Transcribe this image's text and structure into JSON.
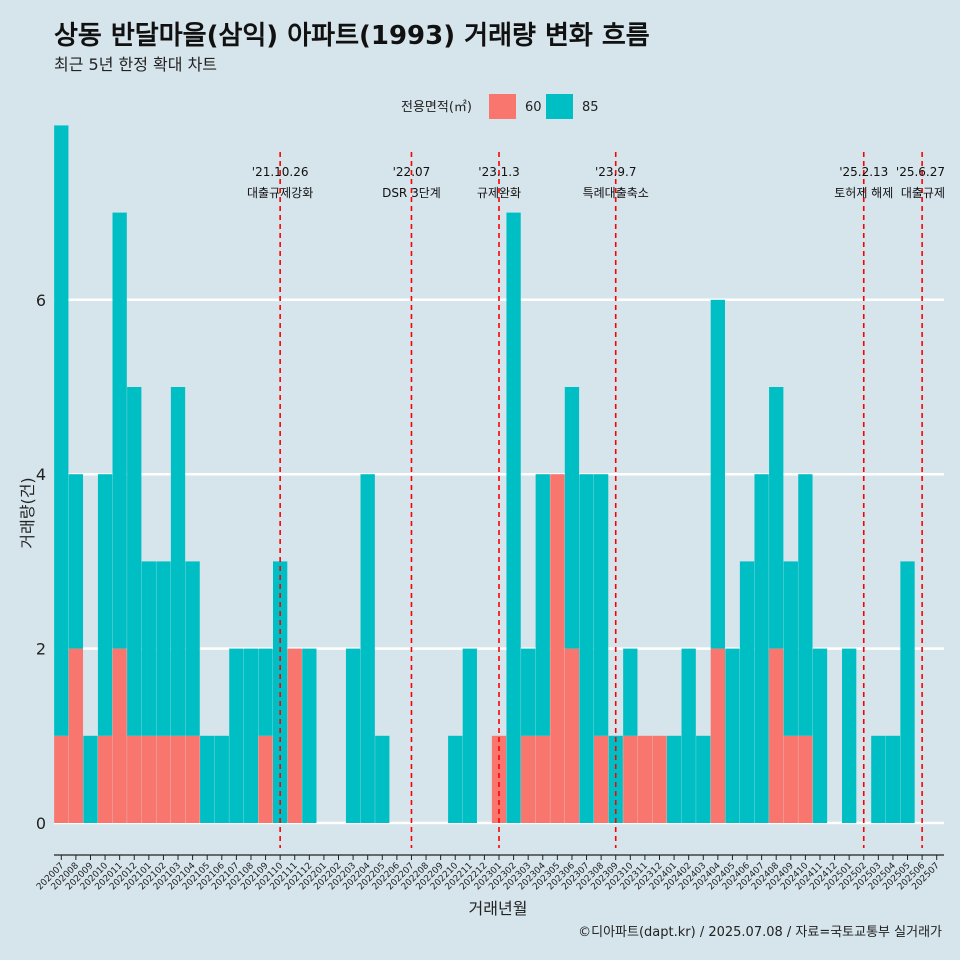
{
  "chart_data": {
    "type": "bar",
    "title": "상동 반달마을(삼익) 아파트(1993) 거래량 변화 흐름",
    "subtitle": "최근 5년 한정 확대 차트",
    "xlabel": "거래년월",
    "ylabel": "거래량(건)",
    "ylim": [
      -0.3,
      7.3
    ],
    "yticks": [
      0,
      2,
      4,
      6
    ],
    "grid": "horizontal",
    "legend": {
      "title": "전용면적(㎡)",
      "position": "top",
      "items": [
        {
          "name": "60",
          "color": "#f8766d"
        },
        {
          "name": "85",
          "color": "#00bfc4"
        }
      ]
    },
    "categories": [
      "202007",
      "202008",
      "202009",
      "202010",
      "202011",
      "202012",
      "202101",
      "202102",
      "202103",
      "202104",
      "202105",
      "202106",
      "202107",
      "202108",
      "202109",
      "202110",
      "202111",
      "202112",
      "202201",
      "202202",
      "202203",
      "202204",
      "202205",
      "202206",
      "202207",
      "202208",
      "202209",
      "202210",
      "202211",
      "202212",
      "202301",
      "202302",
      "202303",
      "202304",
      "202305",
      "202306",
      "202307",
      "202308",
      "202309",
      "202310",
      "202311",
      "202312",
      "202401",
      "202402",
      "202403",
      "202404",
      "202405",
      "202406",
      "202407",
      "202408",
      "202409",
      "202410",
      "202411",
      "202412",
      "202501",
      "202502",
      "202503",
      "202504",
      "202505",
      "202506",
      "202507"
    ],
    "series": [
      {
        "name": "60",
        "color": "#f8766d",
        "values": [
          1,
          2,
          0,
          1,
          2,
          1,
          1,
          1,
          1,
          1,
          0,
          0,
          0,
          0,
          1,
          0,
          2,
          0,
          0,
          0,
          0,
          0,
          0,
          0,
          0,
          0,
          0,
          0,
          0,
          0,
          1,
          0,
          1,
          1,
          4,
          2,
          0,
          1,
          0,
          1,
          1,
          1,
          0,
          0,
          0,
          2,
          0,
          0,
          0,
          2,
          1,
          1,
          0,
          0,
          0,
          0,
          0,
          0,
          0,
          0,
          0
        ]
      },
      {
        "name": "85",
        "color": "#00bfc4",
        "values": [
          7,
          2,
          1,
          3,
          5,
          4,
          2,
          2,
          4,
          2,
          1,
          1,
          2,
          2,
          1,
          3,
          0,
          2,
          0,
          0,
          2,
          4,
          1,
          0,
          0,
          0,
          0,
          1,
          2,
          0,
          0,
          7,
          1,
          3,
          0,
          3,
          4,
          3,
          1,
          1,
          0,
          0,
          1,
          2,
          1,
          4,
          2,
          3,
          4,
          3,
          2,
          3,
          2,
          0,
          2,
          0,
          1,
          1,
          3,
          0,
          0
        ]
      }
    ],
    "events": [
      {
        "date": "'21.10.26",
        "label": "대출규제강화",
        "category": "202110"
      },
      {
        "date": "'22.07",
        "label": "DSR 3단계",
        "category": "202207"
      },
      {
        "date": "'23.1.3",
        "label": "규제완화",
        "category": "202301"
      },
      {
        "date": "'23.9.7",
        "label": "특례대출축소",
        "category": "202309"
      },
      {
        "date": "'25.2.13",
        "label": "토허제 해제",
        "category": "202502"
      },
      {
        "date": "'25.6.27",
        "label": "대출규제",
        "category": "202506"
      }
    ],
    "event_line_color": "#ff0000"
  },
  "caption": "©디아파트(dapt.kr) / 2025.07.08 / 자료=국토교통부 실거래가"
}
